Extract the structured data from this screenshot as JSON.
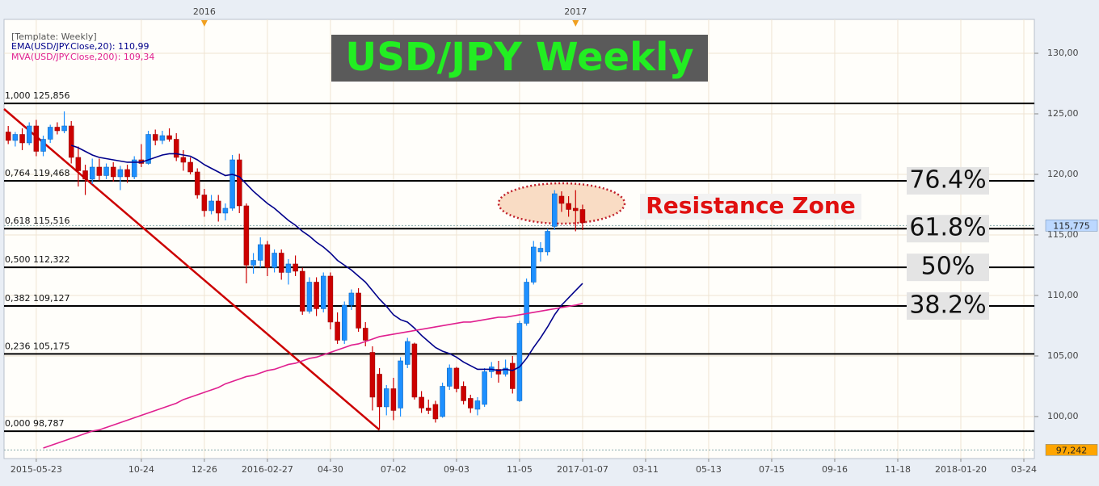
{
  "chart_data": {
    "type": "candlestick",
    "title": "USD/JPY Weekly",
    "template": "[Template: Weekly]",
    "annotation": "Resistance Zone",
    "ylim": [
      96.53,
      132.8
    ],
    "yticks": [
      {
        "value": 100,
        "label": "100,00"
      },
      {
        "value": 105,
        "label": "105,00"
      },
      {
        "value": 110,
        "label": "110,00"
      },
      {
        "value": 115,
        "label": "115,00"
      },
      {
        "value": 120,
        "label": "120,00"
      },
      {
        "value": 125,
        "label": "125,00"
      },
      {
        "value": 130,
        "label": "130,00"
      }
    ],
    "xlim": [
      -0.6,
      146.5
    ],
    "xticks": [
      {
        "value": 4,
        "label": "2015-05-23"
      },
      {
        "value": 19,
        "label": "10-24"
      },
      {
        "value": 28,
        "label": "12-26"
      },
      {
        "value": 37,
        "label": "2016-02-27"
      },
      {
        "value": 46,
        "label": "04-30"
      },
      {
        "value": 55,
        "label": "07-02"
      },
      {
        "value": 64,
        "label": "09-03"
      },
      {
        "value": 73,
        "label": "11-05"
      },
      {
        "value": 82,
        "label": "2017-01-07"
      },
      {
        "value": 91,
        "label": "03-11"
      },
      {
        "value": 100,
        "label": "05-13"
      },
      {
        "value": 109,
        "label": "07-15"
      },
      {
        "value": 118,
        "label": "09-16"
      },
      {
        "value": 127,
        "label": "11-18"
      },
      {
        "value": 136,
        "label": "2018-01-20"
      },
      {
        "value": 145,
        "label": "03-24"
      }
    ],
    "year_markers": [
      {
        "value": 28,
        "label": "2016"
      },
      {
        "value": 81,
        "label": "2017"
      }
    ],
    "grid": true,
    "up_color": "#1e90ff",
    "down_color": "#cc0000",
    "open": [
      123.5,
      122.8,
      123.3,
      122.6,
      124.0,
      121.9,
      122.9,
      123.9,
      123.6,
      124.0,
      121.4,
      120.3,
      119.6,
      120.6,
      119.9,
      120.6,
      119.8,
      120.4,
      119.8,
      121.2,
      120.9,
      123.3,
      122.8,
      123.2,
      122.9,
      121.4,
      121.0,
      120.2,
      118.3,
      117.0,
      117.8,
      116.8,
      117.2,
      121.2,
      117.4,
      112.5,
      112.9,
      114.2,
      112.3,
      113.5,
      111.9,
      112.6,
      112.0,
      108.7,
      111.1,
      108.9,
      111.6,
      107.8,
      106.3,
      109.2,
      110.2,
      107.3,
      105.3,
      103.5,
      100.8,
      102.3,
      100.7,
      104.3,
      106.0,
      101.6,
      100.7,
      101.0,
      100.0,
      102.5,
      104.0,
      102.5,
      101.5,
      100.6,
      101.0,
      103.7,
      103.9,
      103.5,
      104.4,
      101.3,
      107.7,
      111.1,
      113.6,
      113.6,
      115.7,
      118.2,
      117.6,
      117.2,
      117.1
    ],
    "high": [
      124.0,
      123.5,
      123.8,
      124.3,
      124.5,
      123.2,
      124.1,
      124.3,
      125.2,
      124.4,
      122.3,
      120.8,
      121.3,
      121.3,
      120.9,
      121.0,
      120.7,
      120.8,
      121.5,
      122.5,
      123.6,
      123.7,
      123.6,
      123.8,
      123.4,
      122.0,
      121.4,
      120.5,
      118.8,
      118.3,
      118.3,
      117.6,
      121.6,
      121.7,
      117.6,
      113.5,
      114.8,
      114.5,
      113.8,
      113.8,
      113.0,
      113.3,
      112.3,
      111.5,
      111.5,
      111.9,
      111.9,
      108.6,
      109.5,
      110.5,
      110.6,
      107.8,
      105.8,
      104.0,
      102.6,
      103.2,
      104.9,
      106.5,
      106.1,
      102.1,
      101.4,
      101.3,
      102.8,
      104.3,
      104.1,
      102.9,
      101.8,
      101.6,
      104.0,
      104.5,
      104.6,
      104.7,
      105.0,
      107.9,
      111.4,
      114.5,
      114.4,
      115.5,
      118.7,
      118.6,
      118.2,
      118.7,
      117.5
    ],
    "low": [
      122.5,
      122.3,
      122.0,
      122.4,
      121.5,
      121.5,
      122.6,
      123.3,
      123.4,
      120.9,
      119.0,
      118.3,
      119.2,
      119.5,
      119.6,
      119.4,
      118.7,
      119.3,
      119.6,
      120.6,
      120.8,
      122.4,
      122.5,
      122.7,
      121.1,
      120.3,
      120.0,
      118.0,
      116.5,
      116.7,
      116.1,
      116.2,
      117.0,
      116.8,
      111.0,
      111.8,
      112.3,
      111.6,
      111.9,
      111.3,
      110.9,
      111.6,
      108.4,
      108.5,
      108.3,
      108.6,
      107.2,
      106.0,
      106.0,
      108.8,
      107.0,
      105.8,
      100.5,
      99.0,
      100.1,
      99.7,
      100.0,
      104.0,
      101.4,
      100.3,
      100.2,
      99.5,
      99.9,
      102.2,
      102.0,
      101.0,
      100.3,
      100.1,
      100.8,
      103.2,
      102.8,
      103.3,
      101.9,
      101.2,
      107.5,
      110.9,
      112.8,
      113.3,
      115.4,
      116.9,
      116.5,
      115.3,
      115.4
    ],
    "close": [
      122.8,
      123.3,
      122.6,
      124.0,
      121.9,
      122.9,
      123.9,
      123.6,
      124.0,
      121.4,
      120.3,
      119.6,
      120.6,
      119.9,
      120.6,
      119.8,
      120.4,
      119.8,
      121.2,
      120.9,
      123.3,
      122.8,
      123.2,
      122.9,
      121.4,
      121.0,
      120.2,
      118.3,
      117.0,
      117.8,
      116.8,
      117.2,
      121.2,
      117.4,
      112.5,
      112.9,
      114.2,
      112.3,
      113.5,
      111.9,
      112.6,
      112.0,
      108.7,
      111.1,
      108.9,
      111.6,
      107.8,
      106.3,
      109.2,
      110.2,
      107.3,
      106.3,
      101.6,
      100.8,
      102.3,
      100.5,
      104.6,
      106.2,
      101.6,
      100.7,
      100.5,
      99.8,
      102.5,
      104.0,
      102.3,
      101.3,
      100.7,
      101.3,
      103.7,
      104.1,
      103.5,
      104.0,
      102.3,
      107.7,
      111.1,
      114.0,
      113.9,
      115.3,
      118.4,
      117.6,
      117.1,
      117.0,
      116.0
    ],
    "series": [
      {
        "name": "EMA(USD/JPY.Close,20): 110,99",
        "color": "#00008b",
        "values": [
          null,
          null,
          null,
          null,
          null,
          null,
          null,
          null,
          null,
          122.4,
          122.2,
          121.9,
          121.6,
          121.4,
          121.3,
          121.2,
          121.1,
          121.0,
          121.0,
          121.0,
          121.2,
          121.4,
          121.6,
          121.7,
          121.7,
          121.6,
          121.5,
          121.2,
          120.8,
          120.5,
          120.2,
          119.9,
          120.0,
          119.8,
          119.2,
          118.6,
          118.1,
          117.6,
          117.2,
          116.7,
          116.2,
          115.8,
          115.3,
          114.9,
          114.4,
          114.0,
          113.5,
          112.9,
          112.5,
          112.1,
          111.6,
          111.1,
          110.4,
          109.7,
          109.1,
          108.4,
          108.0,
          107.8,
          107.3,
          106.7,
          106.2,
          105.7,
          105.4,
          105.2,
          104.9,
          104.5,
          104.2,
          103.9,
          103.9,
          103.9,
          103.8,
          103.9,
          103.8,
          104.1,
          104.8,
          105.7,
          106.5,
          107.4,
          108.4,
          109.2,
          109.8,
          110.4,
          110.99
        ]
      },
      {
        "name": "MVA(USD/JPY.Close,200): 109,34",
        "color": "#e0208f",
        "values": [
          null,
          null,
          null,
          null,
          null,
          97.4,
          97.6,
          97.8,
          98.0,
          98.2,
          98.4,
          98.6,
          98.8,
          98.9,
          99.1,
          99.3,
          99.5,
          99.7,
          99.9,
          100.1,
          100.3,
          100.5,
          100.7,
          100.9,
          101.1,
          101.4,
          101.6,
          101.8,
          102.0,
          102.2,
          102.4,
          102.7,
          102.9,
          103.1,
          103.3,
          103.4,
          103.6,
          103.8,
          103.9,
          104.1,
          104.3,
          104.4,
          104.6,
          104.8,
          104.9,
          105.1,
          105.3,
          105.5,
          105.7,
          105.9,
          106.0,
          106.2,
          106.4,
          106.6,
          106.7,
          106.8,
          106.9,
          107.0,
          107.1,
          107.2,
          107.3,
          107.4,
          107.5,
          107.6,
          107.7,
          107.8,
          107.8,
          107.9,
          108.0,
          108.1,
          108.2,
          108.2,
          108.3,
          108.4,
          108.5,
          108.6,
          108.7,
          108.8,
          108.9,
          109.0,
          109.1,
          109.2,
          109.34
        ]
      }
    ],
    "fib_levels": [
      {
        "value": 125.856,
        "label": "1,000 125,856"
      },
      {
        "value": 119.468,
        "label": "0,764 119,468",
        "tag": "76.4%"
      },
      {
        "value": 115.516,
        "label": "0,618 115,516",
        "tag": "61.8%"
      },
      {
        "value": 112.322,
        "label": "0,500 112,322",
        "tag": "50%"
      },
      {
        "value": 109.127,
        "label": "0,382 109,127",
        "tag": "38.2%"
      },
      {
        "value": 105.175,
        "label": "0,236 105,175"
      },
      {
        "value": 98.787,
        "label": "0,000 98,787"
      }
    ],
    "trendline": {
      "x": [
        -0.6,
        53
      ],
      "values": [
        125.4,
        98.9
      ],
      "color": "#cc0000"
    },
    "price_tags": [
      {
        "value": 115.775,
        "label": "115,775",
        "color": "#bcd8ff"
      },
      {
        "value": 97.242,
        "label": "97,242",
        "color": "#ffa500"
      }
    ]
  }
}
